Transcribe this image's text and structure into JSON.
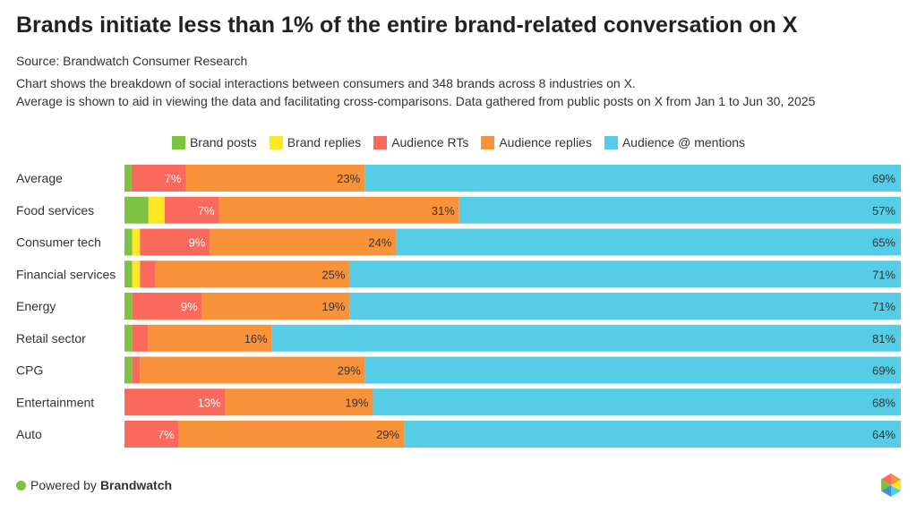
{
  "header": {
    "title": "Brands initiate less than 1% of the entire brand-related conversation on X",
    "source": "Source: Brandwatch Consumer Research",
    "description_line1": "Chart shows the breakdown of social interactions between consumers and 348 brands across 8 industries on X.",
    "description_line2": "Average is shown to aid in viewing the data and facilitating cross-comparisons. Data gathered from public posts on X from Jan 1 to Jun 30, 2025"
  },
  "footer": {
    "powered_by": "Powered by",
    "brand": "Brandwatch",
    "dot_color": "#7dc242"
  },
  "chart_data": {
    "type": "bar",
    "orientation": "horizontal",
    "stacked": true,
    "percent_stacked": true,
    "legend_position": "top",
    "categories": [
      "Average",
      "Food services",
      "Consumer tech",
      "Financial services",
      "Energy",
      "Retail sector",
      "CPG",
      "Entertainment",
      "Auto"
    ],
    "series": [
      {
        "name": "Brand posts",
        "color": "#7dc242",
        "values": [
          0.9,
          3.1,
          1.0,
          1.0,
          1.0,
          1.0,
          1.0,
          0,
          0
        ]
      },
      {
        "name": "Brand replies",
        "color": "#fde725",
        "values": [
          0,
          2.1,
          1.0,
          1.0,
          0,
          0,
          0,
          0,
          0
        ]
      },
      {
        "name": "Audience RTs",
        "color": "#f96a5d",
        "values": [
          7,
          7,
          9,
          2,
          9,
          2,
          1,
          13,
          7
        ]
      },
      {
        "name": "Audience replies",
        "color": "#f8933a",
        "values": [
          23,
          31,
          24,
          25,
          19,
          16,
          29,
          19,
          29
        ]
      },
      {
        "name": "Audience @ mentions",
        "color": "#56cde6",
        "values": [
          69,
          57,
          65,
          71,
          71,
          81,
          69,
          68,
          64
        ]
      }
    ],
    "data_labels": [
      [
        "",
        "7%",
        "23%",
        "69%"
      ],
      [
        "",
        "7%",
        "31%",
        "57%"
      ],
      [
        "",
        "9%",
        "24%",
        "65%"
      ],
      [
        "",
        "",
        "25%",
        "71%"
      ],
      [
        "",
        "9%",
        "19%",
        "71%"
      ],
      [
        "",
        "",
        "16%",
        "81%"
      ],
      [
        "",
        "",
        "29%",
        "69%"
      ],
      [
        "",
        "13%",
        "19%",
        "68%"
      ],
      [
        "",
        "7%",
        "29%",
        "64%"
      ]
    ],
    "xlim": [
      0,
      100
    ],
    "grid": false
  }
}
